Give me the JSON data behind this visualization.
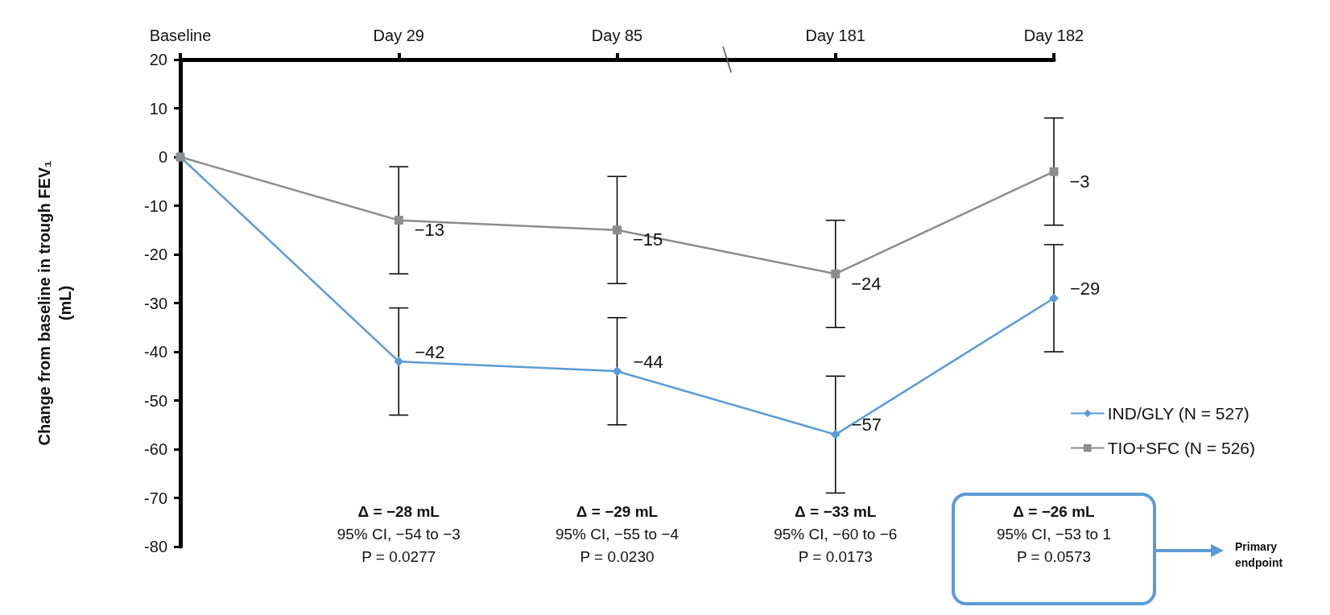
{
  "chart_data": {
    "type": "line",
    "ylabel": "Change from baseline in trough FEV₁ (mL)",
    "categories": [
      "Baseline",
      "Day 29",
      "Day 85",
      "Day 181",
      "Day 182"
    ],
    "ylim": [
      -80,
      20
    ],
    "yticks": [
      20,
      10,
      0,
      -10,
      -20,
      -30,
      -40,
      -50,
      -60,
      -70,
      -80
    ],
    "grid": false,
    "legend": "right",
    "line_style": "solid",
    "series": [
      {
        "name": "IND/GLY (N = 527)",
        "color": "#5b9bd5",
        "marker": "diamond",
        "values": [
          0,
          -42,
          -44,
          -57,
          -29
        ],
        "errors": [
          null,
          [
            -53,
            -31
          ],
          [
            -55,
            -33
          ],
          [
            -69,
            -45
          ],
          [
            -40,
            -18
          ]
        ],
        "value_labels": [
          null,
          "−42",
          "−44",
          "−57",
          "−29"
        ]
      },
      {
        "name": "TIO+SFC (N = 526)",
        "color": "#8c8c8c",
        "marker": "square",
        "values": [
          0,
          -13,
          -15,
          -24,
          -3
        ],
        "errors": [
          null,
          [
            -24,
            -2
          ],
          [
            -26,
            -4
          ],
          [
            -35,
            -13
          ],
          [
            -14,
            8
          ]
        ],
        "value_labels": [
          null,
          "−13",
          "−15",
          "−24",
          "−3"
        ]
      }
    ],
    "annotations": [
      "Δ = −28 mL\n95% CI, −54 to −3\nP = 0.0277",
      "Δ = −29 mL\n95% CI, −55 to −4\nP = 0.0230",
      "Δ = −33 mL\n95% CI, −60 to −6\nP = 0.0173",
      "Δ = −26 mL\n95% CI, −53 to 1\nP = 0.0573",
      "Primary\nendpoint"
    ]
  }
}
